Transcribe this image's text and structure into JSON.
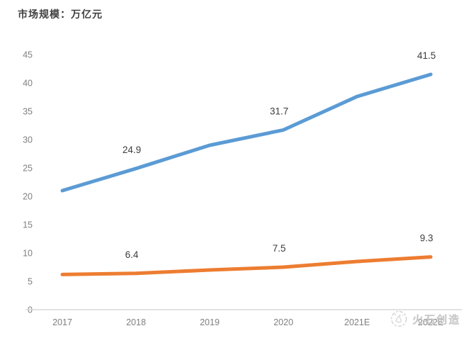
{
  "title": "市场规模：万亿元",
  "watermark": {
    "text": "火石创造",
    "icon": "huoshi-logo-icon"
  },
  "colors": {
    "series_blue": "#5B9BD5",
    "series_orange": "#ED7D31",
    "axis_line": "#d9d9d9",
    "tick_label": "#7f7f7f",
    "data_label": "#3d3d3d",
    "title_text": "#3f3f3f",
    "watermark_gray": "#b3b3b3"
  },
  "chart_data": {
    "type": "line",
    "title": "市场规模：万亿元",
    "xlabel": "",
    "ylabel": "",
    "categories": [
      "2017",
      "2018",
      "2019",
      "2020",
      "2021E",
      "2022E"
    ],
    "series": [
      {
        "name": "blue",
        "color": "#5B9BD5",
        "values": [
          21.0,
          24.9,
          29.0,
          31.7,
          37.6,
          41.5
        ]
      },
      {
        "name": "orange",
        "color": "#ED7D31",
        "values": [
          6.2,
          6.4,
          7.0,
          7.5,
          8.5,
          9.3
        ]
      }
    ],
    "data_labels": [
      {
        "series": 0,
        "index": 1,
        "text": "24.9"
      },
      {
        "series": 0,
        "index": 3,
        "text": "31.7"
      },
      {
        "series": 0,
        "index": 5,
        "text": "41.5"
      },
      {
        "series": 1,
        "index": 1,
        "text": "6.4"
      },
      {
        "series": 1,
        "index": 3,
        "text": "7.5"
      },
      {
        "series": 1,
        "index": 5,
        "text": "9.3"
      }
    ],
    "yticks": [
      0,
      5,
      10,
      15,
      20,
      25,
      30,
      35,
      40,
      45
    ],
    "ylim": [
      0,
      45
    ],
    "grid": false,
    "legend": "none"
  }
}
